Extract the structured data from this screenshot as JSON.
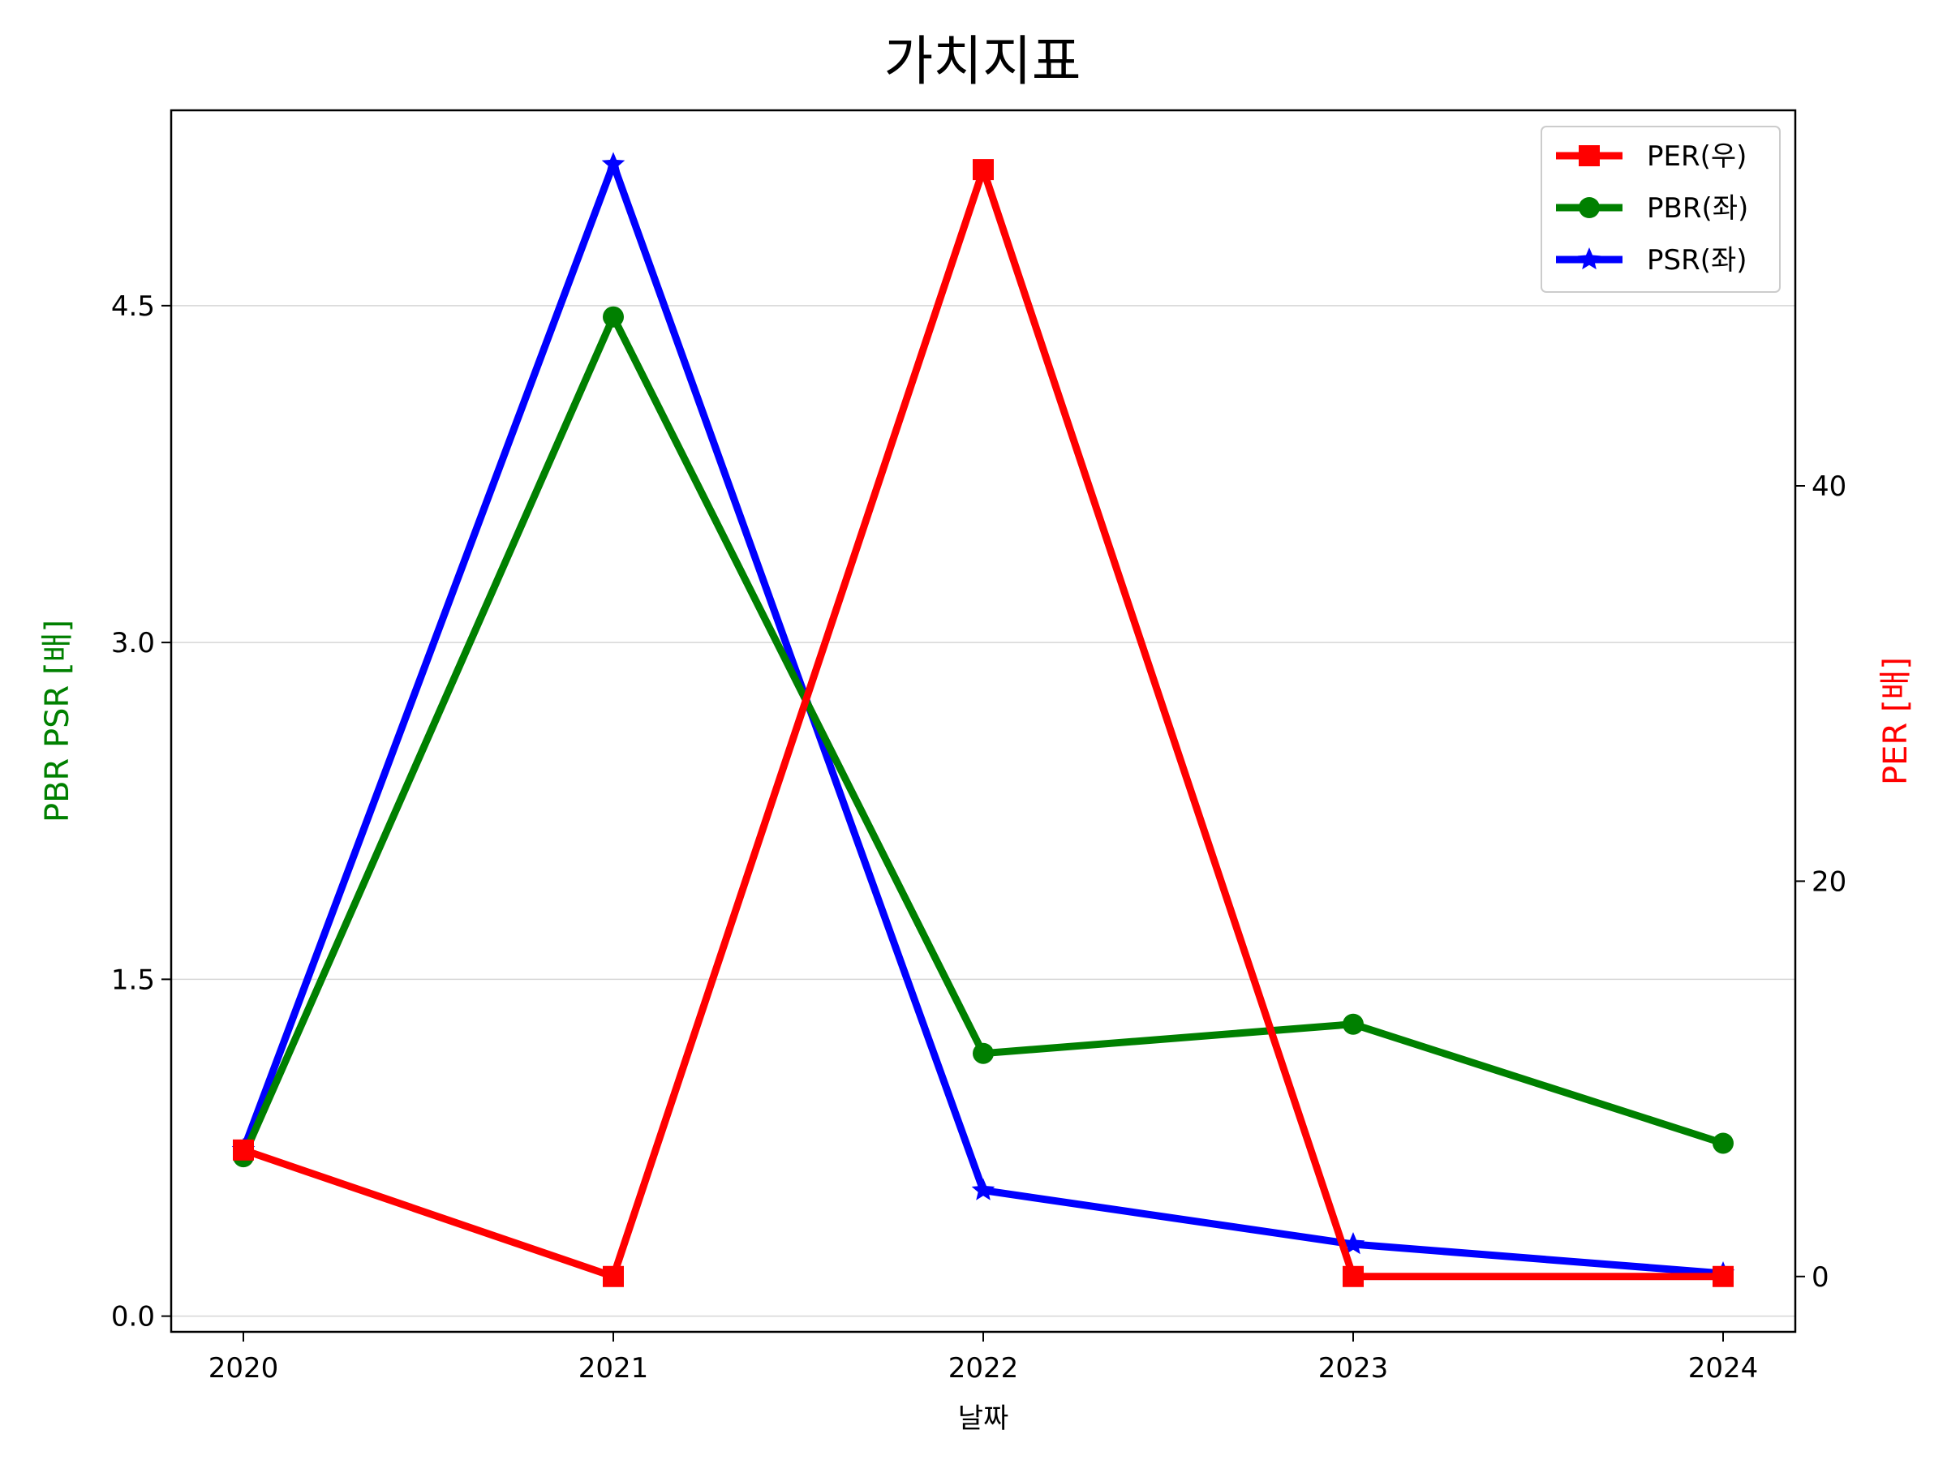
{
  "chart_data": {
    "type": "line",
    "title": "가치지표",
    "xlabel": "날짜",
    "ylabel_left": "PBR PSR [배]",
    "ylabel_right": "PER [배]",
    "ylabel_left_color": "#008000",
    "ylabel_right_color": "#ff0000",
    "x": [
      "2020",
      "2021",
      "2022",
      "2023",
      "2024"
    ],
    "ylim_left": [
      -0.07,
      5.37
    ],
    "yticks_left": [
      "0.0",
      "1.5",
      "3.0",
      "4.5"
    ],
    "ylim_right": [
      -2.8,
      59.0
    ],
    "yticks_right": [
      "0",
      "20",
      "40"
    ],
    "grid": "horizontal (left axis)",
    "legend_position": "top-right",
    "series": [
      {
        "name": "PER(우)",
        "axis": "right",
        "color": "#ff0000",
        "marker": "square",
        "values": [
          6.4,
          0.0,
          56.0,
          0.0,
          0.0
        ]
      },
      {
        "name": "PBR(좌)",
        "axis": "left",
        "color": "#008000",
        "marker": "circle",
        "values": [
          0.71,
          4.45,
          1.17,
          1.3,
          0.77
        ]
      },
      {
        "name": "PSR(좌)",
        "axis": "left",
        "color": "#0000ff",
        "marker": "star",
        "values": [
          0.74,
          5.13,
          0.56,
          0.32,
          0.19
        ]
      }
    ]
  }
}
